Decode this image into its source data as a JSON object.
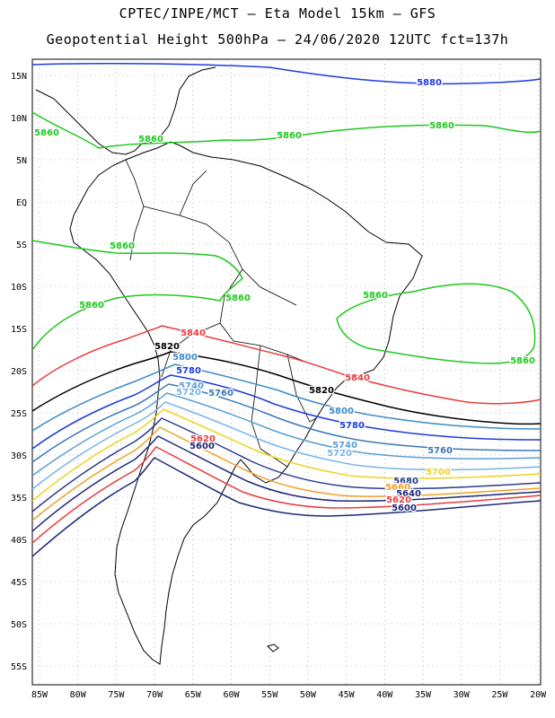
{
  "title_line1": "CPTEC/INPE/MCT –  Eta Model 15km – GFS",
  "title_line2": "Geopotential Height 500hPa – 24/06/2020 12UTC fct=137h",
  "lat_labels": [
    "15N",
    "10N",
    "5N",
    "EQ",
    "5S",
    "10S",
    "15S",
    "20S",
    "25S",
    "30S",
    "35S",
    "40S",
    "45S",
    "50S",
    "55S"
  ],
  "lon_labels": [
    "85W",
    "80W",
    "75W",
    "70W",
    "65W",
    "60W",
    "55W",
    "50W",
    "45W",
    "40W",
    "35W",
    "30W",
    "25W",
    "20W"
  ],
  "contours": [
    {
      "value": "5880",
      "color": "#1e3cdc"
    },
    {
      "value": "5860",
      "color": "#1ec81e"
    },
    {
      "value": "5840",
      "color": "#e83c3c"
    },
    {
      "value": "5820",
      "color": "#000000"
    },
    {
      "value": "5800",
      "color": "#3c8cc8"
    },
    {
      "value": "5780",
      "color": "#1e3cdc"
    },
    {
      "value": "5760",
      "color": "#3c78b4"
    },
    {
      "value": "5740",
      "color": "#5aa0d2"
    },
    {
      "value": "5720",
      "color": "#78b4e6"
    },
    {
      "value": "5700",
      "color": "#f0d21e"
    },
    {
      "value": "5680",
      "color": "#283c8c"
    },
    {
      "value": "5660",
      "color": "#f0a028"
    },
    {
      "value": "5640",
      "color": "#1e2878"
    },
    {
      "value": "5620",
      "color": "#e83c3c"
    },
    {
      "value": "5600",
      "color": "#1e2878"
    }
  ]
}
